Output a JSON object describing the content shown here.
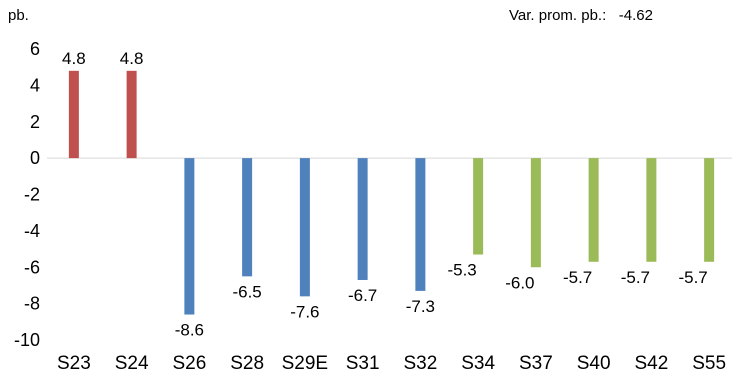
{
  "chart_data": {
    "type": "bar",
    "unit_label": "pb.",
    "annotation": {
      "label": "Var. prom. pb.:",
      "value": "-4.62"
    },
    "categories": [
      "S23",
      "S24",
      "S26",
      "S28",
      "S29E",
      "S31",
      "S32",
      "S34",
      "S37",
      "S40",
      "S42",
      "S55"
    ],
    "values": [
      4.8,
      4.8,
      -8.6,
      -6.5,
      -7.6,
      -6.7,
      -7.3,
      -5.3,
      -6.0,
      -5.7,
      -5.7,
      -5.7
    ],
    "data_labels": [
      "4.8",
      "4.8",
      "-8.6",
      "-6.5",
      "-7.6",
      "-6.7",
      "-7.3",
      "-5.3",
      "-6.0",
      "-5.7",
      "-5.7",
      "-5.7"
    ],
    "bar_colors": [
      "#c0504d",
      "#c0504d",
      "#4f81bd",
      "#4f81bd",
      "#4f81bd",
      "#4f81bd",
      "#4f81bd",
      "#9bbb59",
      "#9bbb59",
      "#9bbb59",
      "#9bbb59",
      "#9bbb59"
    ],
    "ylim": [
      -10,
      6
    ],
    "yticks": [
      "6",
      "4",
      "2",
      "0",
      "-2",
      "-4",
      "-6",
      "-8",
      "-10"
    ],
    "grid": false,
    "legend": "none"
  }
}
